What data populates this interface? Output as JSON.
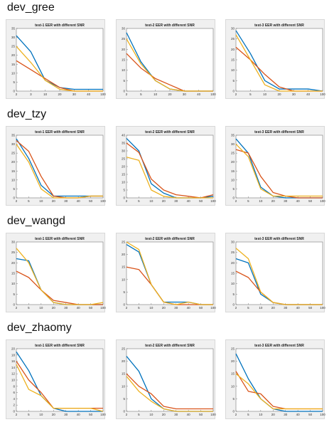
{
  "colors": {
    "blue": "#0072BD",
    "red": "#D95319",
    "yellow": "#EDB120"
  },
  "groups": [
    {
      "label": "dev_gree"
    },
    {
      "label": "dev_tzy"
    },
    {
      "label": "dev_wangd"
    },
    {
      "label": "dev_zhaomy"
    }
  ],
  "chart_data": [
    {
      "type": "line",
      "title": "test-1 EER with different SNR",
      "categories": [
        "2",
        "3",
        "10",
        "20",
        "30",
        "40",
        "100"
      ],
      "ylim": [
        0,
        35
      ],
      "yticks": [
        0,
        5,
        10,
        15,
        20,
        25,
        30,
        35
      ],
      "series": [
        {
          "values": [
            31,
            22,
            6,
            2,
            1,
            1,
            1
          ]
        },
        {
          "values": [
            17,
            12,
            7,
            2,
            0,
            0,
            0
          ]
        },
        {
          "values": [
            25,
            16,
            6,
            1,
            0,
            0,
            0
          ]
        }
      ]
    },
    {
      "type": "line",
      "title": "test-2 EER with different SNR",
      "categories": [
        "2",
        "5",
        "10",
        "20",
        "30",
        "40",
        "100"
      ],
      "ylim": [
        0,
        30
      ],
      "yticks": [
        0,
        5,
        10,
        15,
        20,
        25,
        30
      ],
      "series": [
        {
          "values": [
            28,
            14,
            5,
            1,
            0,
            0,
            0
          ]
        },
        {
          "values": [
            18,
            11,
            6,
            3,
            0,
            0,
            0
          ]
        },
        {
          "values": [
            25,
            13,
            5,
            1,
            0,
            0,
            0
          ]
        }
      ]
    },
    {
      "type": "line",
      "title": "test-3 EER with different SNR",
      "categories": [
        "2",
        "5",
        "10",
        "20",
        "30",
        "40",
        "100"
      ],
      "ylim": [
        0,
        30
      ],
      "yticks": [
        0,
        5,
        10,
        15,
        20,
        25,
        30
      ],
      "series": [
        {
          "values": [
            29,
            18,
            5,
            1,
            1,
            1,
            0
          ]
        },
        {
          "values": [
            21,
            15,
            8,
            2,
            0,
            0,
            0
          ]
        },
        {
          "values": [
            27,
            15,
            3,
            0,
            0,
            0,
            0
          ]
        }
      ]
    },
    {
      "type": "line",
      "title": "test-1 EER with different SNR",
      "categories": [
        "2",
        "5",
        "10",
        "20",
        "30",
        "40",
        "50",
        "100"
      ],
      "ylim": [
        0,
        35
      ],
      "yticks": [
        0,
        5,
        10,
        15,
        20,
        25,
        30,
        35
      ],
      "series": [
        {
          "values": [
            33,
            22,
            7,
            1,
            1,
            1,
            1,
            1
          ]
        },
        {
          "values": [
            32,
            26,
            12,
            1,
            0,
            0,
            1,
            1
          ]
        },
        {
          "values": [
            30,
            20,
            5,
            0,
            0,
            0,
            1,
            1
          ]
        }
      ]
    },
    {
      "type": "line",
      "title": "test-2 EER with different SNR",
      "categories": [
        "2",
        "5",
        "10",
        "20",
        "30",
        "40",
        "50",
        "100"
      ],
      "ylim": [
        0,
        40
      ],
      "yticks": [
        0,
        5,
        10,
        15,
        20,
        25,
        30,
        35,
        40
      ],
      "series": [
        {
          "values": [
            38,
            30,
            9,
            3,
            0,
            0,
            0,
            1
          ]
        },
        {
          "values": [
            35,
            29,
            12,
            5,
            2,
            1,
            0,
            2
          ]
        },
        {
          "values": [
            26,
            24,
            5,
            1,
            0,
            0,
            0,
            0
          ]
        }
      ]
    },
    {
      "type": "line",
      "title": "test-3 EER with different SNR",
      "categories": [
        "2",
        "5",
        "10",
        "20",
        "30",
        "40",
        "50",
        "100"
      ],
      "ylim": [
        0,
        35
      ],
      "yticks": [
        0,
        5,
        10,
        15,
        20,
        25,
        30,
        35
      ],
      "series": [
        {
          "values": [
            33,
            25,
            6,
            1,
            0,
            0,
            0,
            0
          ]
        },
        {
          "values": [
            27,
            25,
            12,
            3,
            1,
            0,
            0,
            0
          ]
        },
        {
          "values": [
            30,
            23,
            5,
            1,
            1,
            1,
            1,
            1
          ]
        }
      ]
    },
    {
      "type": "line",
      "title": "test-1 EER with different SNR",
      "categories": [
        "2",
        "5",
        "10",
        "20",
        "30",
        "40",
        "50",
        "100"
      ],
      "ylim": [
        0,
        30
      ],
      "yticks": [
        0,
        5,
        10,
        15,
        20,
        25,
        30
      ],
      "series": [
        {
          "values": [
            22,
            21,
            7,
            1,
            0,
            0,
            0,
            0
          ]
        },
        {
          "values": [
            16,
            13,
            7,
            2,
            1,
            0,
            0,
            0
          ]
        },
        {
          "values": [
            27,
            20,
            7,
            1,
            0,
            0,
            0,
            1
          ]
        }
      ]
    },
    {
      "type": "line",
      "title": "test-2 EER with different SNR",
      "categories": [
        "2",
        "5",
        "10",
        "20",
        "30",
        "40",
        "50",
        "100"
      ],
      "ylim": [
        0,
        25
      ],
      "yticks": [
        0,
        5,
        10,
        15,
        20,
        25
      ],
      "series": [
        {
          "values": [
            24,
            21,
            8,
            1,
            1,
            1,
            0,
            0
          ]
        },
        {
          "values": [
            15,
            14,
            8,
            1,
            0,
            0,
            0,
            0
          ]
        },
        {
          "values": [
            25,
            22,
            8,
            1,
            0,
            1,
            0,
            0
          ]
        }
      ]
    },
    {
      "type": "line",
      "title": "test-3 EER with different SNR",
      "categories": [
        "2",
        "5",
        "10",
        "20",
        "30",
        "40",
        "50",
        "100"
      ],
      "ylim": [
        0,
        30
      ],
      "yticks": [
        0,
        5,
        10,
        15,
        20,
        25,
        30
      ],
      "series": [
        {
          "values": [
            22,
            20,
            5,
            1,
            0,
            0,
            0,
            0
          ]
        },
        {
          "values": [
            16,
            13,
            6,
            1,
            0,
            0,
            0,
            0
          ]
        },
        {
          "values": [
            27,
            22,
            6,
            1,
            0,
            0,
            0,
            0
          ]
        }
      ]
    },
    {
      "type": "line",
      "title": "test-1 EER with different SNR",
      "categories": [
        "2",
        "5",
        "10",
        "20",
        "30",
        "40",
        "50",
        "100"
      ],
      "ylim": [
        0,
        20
      ],
      "yticks": [
        0,
        2,
        4,
        6,
        8,
        10,
        12,
        14,
        16,
        18,
        20
      ],
      "series": [
        {
          "values": [
            19,
            13,
            5,
            1,
            0,
            0,
            0,
            0
          ]
        },
        {
          "values": [
            16,
            10,
            6,
            1,
            1,
            1,
            1,
            1
          ]
        },
        {
          "values": [
            15,
            7,
            5,
            1,
            1,
            1,
            1,
            0
          ]
        }
      ]
    },
    {
      "type": "line",
      "title": "test-2 EER with different SNR",
      "categories": [
        "2",
        "5",
        "10",
        "20",
        "30",
        "40",
        "50",
        "100"
      ],
      "ylim": [
        0,
        25
      ],
      "yticks": [
        0,
        5,
        10,
        15,
        20,
        25
      ],
      "series": [
        {
          "values": [
            22,
            16,
            5,
            1,
            0,
            0,
            0,
            0
          ]
        },
        {
          "values": [
            15,
            10,
            7,
            2,
            1,
            1,
            1,
            1
          ]
        },
        {
          "values": [
            14,
            8,
            4,
            1,
            0,
            0,
            0,
            0
          ]
        }
      ]
    },
    {
      "type": "line",
      "title": "test-3 EER with different SNR",
      "categories": [
        "2",
        "5",
        "10",
        "20",
        "30",
        "40",
        "50",
        "100"
      ],
      "ylim": [
        0,
        25
      ],
      "yticks": [
        0,
        5,
        10,
        15,
        20,
        25
      ],
      "series": [
        {
          "values": [
            23,
            13,
            5,
            1,
            0,
            0,
            0,
            0
          ]
        },
        {
          "values": [
            16,
            8,
            7,
            2,
            1,
            1,
            1,
            1
          ]
        },
        {
          "values": [
            15,
            11,
            5,
            1,
            1,
            1,
            1,
            1
          ]
        }
      ]
    }
  ]
}
